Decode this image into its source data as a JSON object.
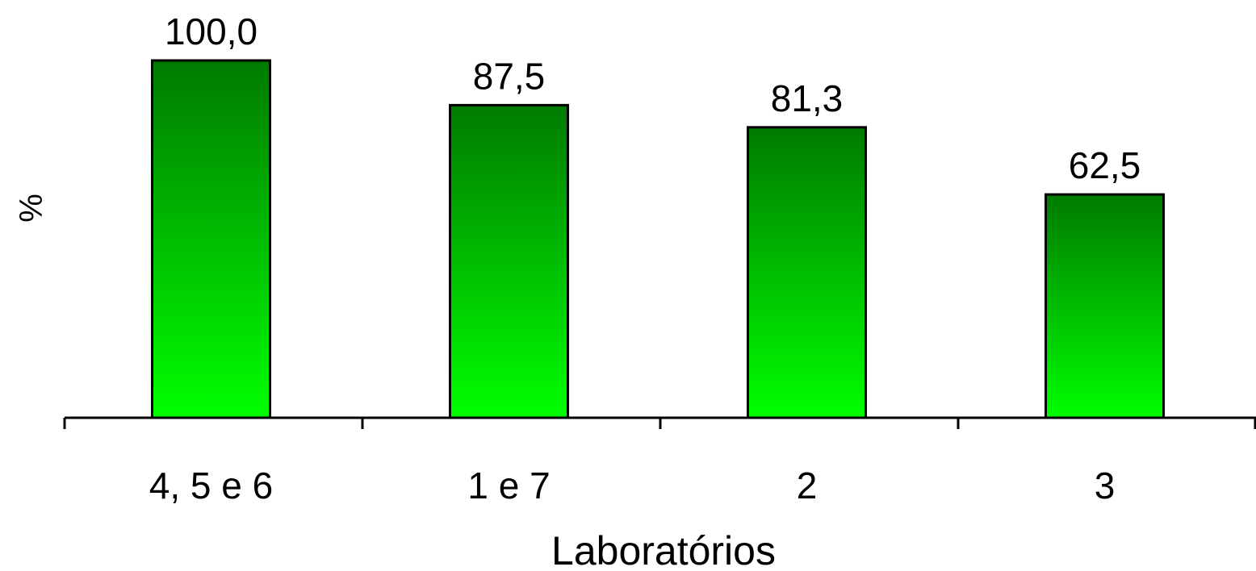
{
  "chart_data": {
    "type": "bar",
    "categories": [
      "4, 5 e 6",
      "1 e 7",
      "2",
      "3"
    ],
    "values": [
      100.0,
      87.5,
      81.3,
      62.5
    ],
    "value_labels": [
      "100,0",
      "87,5",
      "81,3",
      "62,5"
    ],
    "title": "",
    "xlabel": "Laboratórios",
    "ylabel": "%",
    "ylim": [
      0,
      100
    ],
    "grid": false,
    "legend": "none",
    "bar_color_top": "#007a00",
    "bar_color_bottom": "#00ff00",
    "bar_stroke": "#000000"
  }
}
